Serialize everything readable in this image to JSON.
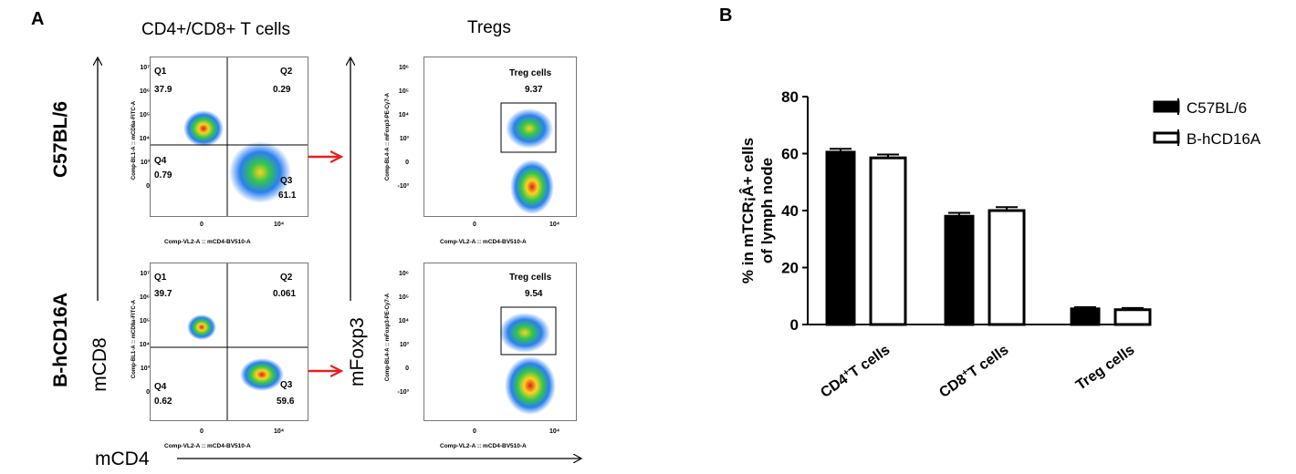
{
  "panel_a": {
    "letter": "A",
    "col_titles": [
      "CD4+/CD8+ T cells",
      "Tregs"
    ],
    "row_labels": [
      "C57BL/6",
      "B-hCD16A"
    ],
    "y_axis_words": [
      "mCD8",
      "mFoxp3"
    ],
    "x_axis_word": "mCD4",
    "cd4cd8_plot": {
      "ylabel": "Comp-BL1-A :: mCD8a-FITC-A",
      "xlabel": "Comp-VL2-A :: mCD4-BV510-A",
      "y_ticks": [
        "10⁷",
        "10⁶",
        "10⁵",
        "10⁴",
        "10³",
        "0"
      ],
      "x_ticks": [
        "0",
        "10⁴"
      ]
    },
    "treg_plot": {
      "ylabel": "Comp-BL4-A :: mFoxp3-PE-Cy7-A",
      "xlabel": "Comp-VL2-A :: mCD4-BV510-A",
      "y_ticks": [
        "10⁶",
        "10⁵",
        "10⁴",
        "10³",
        "0",
        "-10³"
      ],
      "x_ticks": [
        "0",
        "10⁴"
      ]
    },
    "rows": [
      {
        "quadrants": {
          "q1": "Q1",
          "q1_value": "37.9",
          "q2": "Q2",
          "q2_value": "0.29",
          "q3": "Q3",
          "q3_value": "61.1",
          "q4": "Q4",
          "q4_value": "0.79"
        },
        "treg_label": "Treg cells",
        "treg_value": "9.37"
      },
      {
        "quadrants": {
          "q1": "Q1",
          "q1_value": "39.7",
          "q2": "Q2",
          "q2_value": "0.061",
          "q3": "Q3",
          "q3_value": "59.6",
          "q4": "Q4",
          "q4_value": "0.62"
        },
        "treg_label": "Treg cells",
        "treg_value": "9.54"
      }
    ],
    "arrow_color": "#e8201c"
  },
  "panel_b": {
    "letter": "B",
    "chart_data": {
      "type": "bar",
      "title": "",
      "ylabel_line1": "% in mTCR¡Â+ cells",
      "ylabel_line2": "of lymph node",
      "ylim": [
        0,
        80
      ],
      "y_ticks": [
        0,
        20,
        40,
        60,
        80
      ],
      "categories": [
        {
          "main": "CD4",
          "sup": "+",
          "rest": "T cells"
        },
        {
          "main": "CD8",
          "sup": "+",
          "rest": "T cells"
        },
        {
          "main": "Treg cells",
          "sup": "",
          "rest": ""
        }
      ],
      "series": [
        {
          "name": "C57BL/6",
          "fill": "#000000",
          "values": [
            60.5,
            38,
            5.5
          ],
          "errors": [
            1.2,
            1.2,
            0.6
          ]
        },
        {
          "name": "B-hCD16A",
          "fill": "#ffffff",
          "values": [
            58.5,
            40,
            5.2
          ],
          "errors": [
            1.2,
            1.2,
            0.6
          ]
        }
      ],
      "legend_position": "top-right"
    }
  }
}
